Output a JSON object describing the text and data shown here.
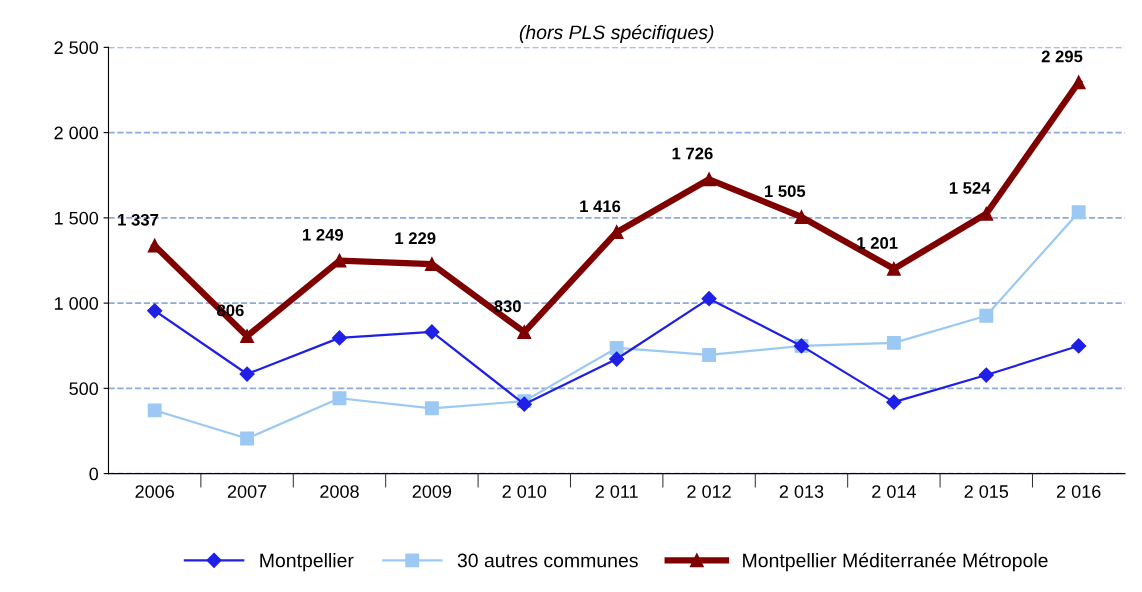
{
  "chart_data": {
    "type": "line",
    "title": "(hors PLS spécifiques)",
    "categories": [
      "2006",
      "2007",
      "2008",
      "2009",
      "2 010",
      "2 011",
      "2 012",
      "2 013",
      "2 014",
      "2 015",
      "2 016"
    ],
    "series": [
      {
        "name": "Montpellier",
        "color": "#1f1fe6",
        "marker": "diamond",
        "values": [
          955,
          584,
          796,
          831,
          407,
          672,
          1026,
          749,
          419,
          578,
          749
        ]
      },
      {
        "name": "30 autres communes",
        "color": "#9cc8f4",
        "marker": "square",
        "values": [
          371,
          206,
          442,
          383,
          425,
          737,
          696,
          749,
          767,
          926,
          1533
        ]
      },
      {
        "name": "Montpellier Méditerranée Métropole",
        "color": "#7f0000",
        "marker": "triangle",
        "values": [
          1337,
          806,
          1249,
          1229,
          830,
          1416,
          1726,
          1505,
          1201,
          1524,
          2295
        ],
        "value_labels": [
          "1 337",
          "806",
          "1 249",
          "1 229",
          "830",
          "1 416",
          "1 726",
          "1 505",
          "1 201",
          "1 524",
          "2 295"
        ]
      }
    ],
    "ylim": [
      0,
      2500
    ],
    "yticks": [
      0,
      {
        "value": 500,
        "label": "500"
      },
      {
        "value": 1000,
        "label": "1 000"
      },
      {
        "value": 1500,
        "label": "1 500"
      },
      {
        "value": 2000,
        "label": "2 000"
      },
      {
        "value": 2500,
        "label": "2 500"
      }
    ],
    "grid": "y",
    "legend": "bottom",
    "line_style": "solid"
  }
}
